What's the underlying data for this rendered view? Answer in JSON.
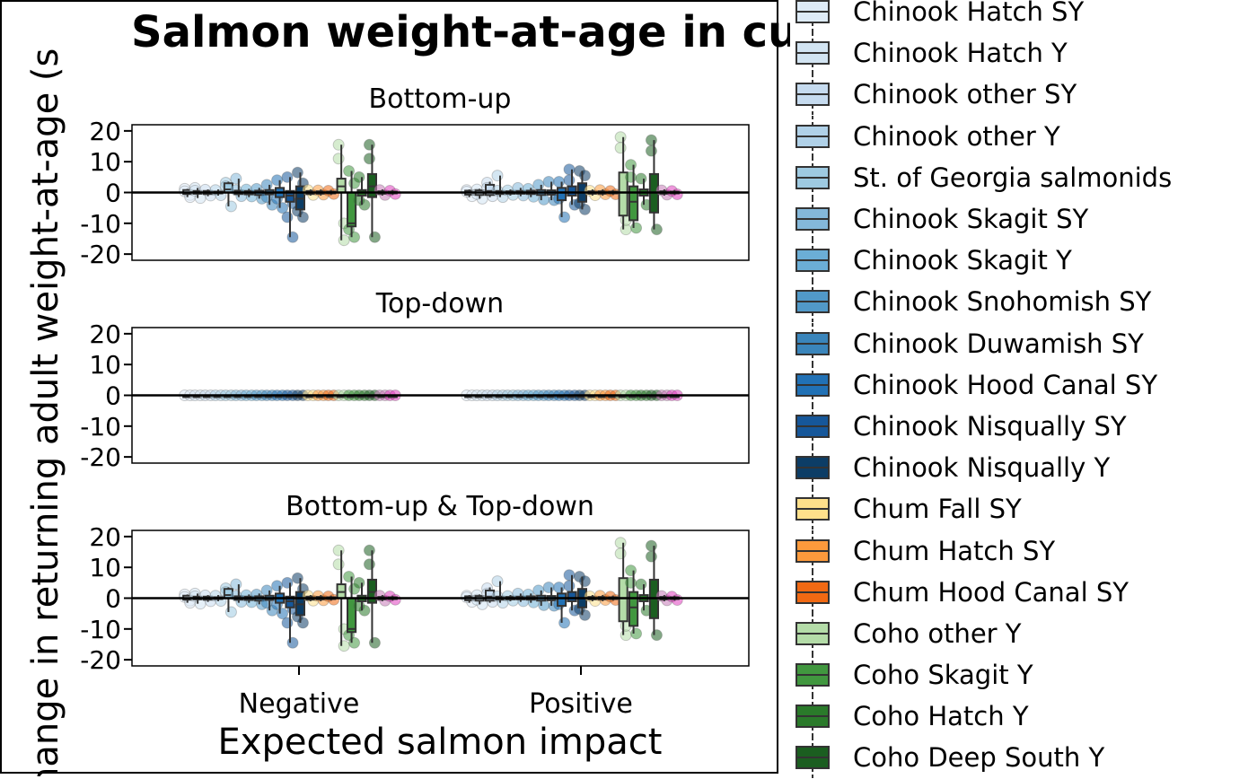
{
  "chart_data": {
    "type": "box",
    "title": "Salmon weight-at-age in cumulative scenar",
    "xlabel": "Expected salmon impact",
    "ylabel": "hange in returning adult weight-at-age (s",
    "categories": [
      "Negative",
      "Positive"
    ],
    "ylim": [
      -22,
      22
    ],
    "yticks": [
      20,
      10,
      0,
      -10,
      -20
    ],
    "ytick_labels": [
      "20",
      "10",
      "0",
      "-10",
      "-20"
    ],
    "reference_line": 0,
    "panels": [
      {
        "name": "Bottom-up",
        "groups": [
          {
            "series": "Chinook Hatch SY",
            "color": "#deebf7",
            "Negative": {
              "median": 0,
              "q1": -0.5,
              "q3": 0.8,
              "min": -1.5,
              "max": 1.2,
              "points": [
                1.2,
                -0.8,
                0.4,
                -1.5
              ]
            },
            "Positive": {
              "median": 0,
              "q1": -0.7,
              "q3": 0.6,
              "min": -1.5,
              "max": 1.0,
              "points": [
                0.8,
                -1.2,
                0.3
              ]
            }
          },
          {
            "series": "Chinook Hatch Y",
            "color": "#d2e4f2",
            "Negative": {
              "median": 0,
              "q1": -0.4,
              "q3": 0.5,
              "min": -1.8,
              "max": 1.5,
              "points": [
                1.5,
                -1.8,
                0.6
              ]
            },
            "Positive": {
              "median": 0,
              "q1": -0.8,
              "q3": 0.7,
              "min": -2.0,
              "max": 1.2,
              "points": [
                1.0,
                -2.0,
                -0.5
              ]
            }
          },
          {
            "series": "Chinook other SY",
            "color": "#c6dbef",
            "Negative": {
              "median": 0,
              "q1": -0.5,
              "q3": 0.5,
              "min": -1.2,
              "max": 1.0,
              "points": [
                0.9,
                -1.0
              ]
            },
            "Positive": {
              "median": 0.5,
              "q1": -0.8,
              "q3": 2.5,
              "min": -1.5,
              "max": 3.5,
              "points": [
                3.2,
                -1.2,
                1.5
              ]
            }
          },
          {
            "series": "Chinook other Y",
            "color": "#b0d1e8",
            "Negative": {
              "median": 0,
              "q1": -0.3,
              "q3": 0.3,
              "min": -1.0,
              "max": 1.0,
              "points": [
                0.8,
                -0.9
              ]
            },
            "Positive": {
              "median": 0,
              "q1": -0.5,
              "q3": 0.5,
              "min": -1.5,
              "max": 5.5,
              "points": [
                5.5,
                -1.5,
                0.6
              ]
            }
          },
          {
            "series": "St. of Georgia salmonids",
            "color": "#9ecae1",
            "Negative": {
              "median": 1,
              "q1": 0,
              "q3": 3,
              "min": -4.5,
              "max": 3.5,
              "points": [
                3.2,
                -4.5,
                2.0
              ]
            },
            "Positive": {
              "median": 0,
              "q1": -0.4,
              "q3": 0.4,
              "min": -1.0,
              "max": 1.0,
              "points": [
                0.7,
                -0.8
              ]
            }
          },
          {
            "series": "Chinook Skagit SY",
            "color": "#84b8da",
            "Negative": {
              "median": 0,
              "q1": -0.5,
              "q3": 0.6,
              "min": -1.5,
              "max": 4.5,
              "points": [
                4.5,
                -1.2,
                0.8
              ]
            },
            "Positive": {
              "median": 0,
              "q1": -0.4,
              "q3": 0.5,
              "min": -1.2,
              "max": 1.5,
              "points": [
                1.5,
                -1.0
              ]
            }
          },
          {
            "series": "Chinook Skagit Y",
            "color": "#6baed6",
            "Negative": {
              "median": 0,
              "q1": -0.6,
              "q3": 0.5,
              "min": -1.5,
              "max": 1.2,
              "points": [
                1.0,
                -1.3
              ]
            },
            "Positive": {
              "median": 0,
              "q1": -0.5,
              "q3": 0.6,
              "min": -1.5,
              "max": 1.5,
              "points": [
                1.2,
                -1.4
              ]
            }
          },
          {
            "series": "Chinook Snohomish SY",
            "color": "#5199c8",
            "Negative": {
              "median": 0,
              "q1": -0.8,
              "q3": 0.6,
              "min": -2.0,
              "max": 1.5,
              "points": [
                1.2,
                -2.0
              ]
            },
            "Positive": {
              "median": 0,
              "q1": -0.8,
              "q3": 0.8,
              "min": -2.5,
              "max": 2.5,
              "points": [
                2.5,
                -2.3
              ]
            }
          },
          {
            "series": "Chinook Duwamish SY",
            "color": "#3a85bb",
            "Negative": {
              "median": 0,
              "q1": -0.6,
              "q3": 0.8,
              "min": -4.0,
              "max": 2.5,
              "points": [
                2.5,
                -4.0,
                -1.5
              ]
            },
            "Positive": {
              "median": 0,
              "q1": -0.7,
              "q3": 0.7,
              "min": -2.5,
              "max": 3.5,
              "points": [
                3.5,
                -2.5
              ]
            }
          },
          {
            "series": "Chinook Hood Canal SY",
            "color": "#2171b5",
            "Negative": {
              "median": 0,
              "q1": -1.5,
              "q3": 1.5,
              "min": -5.0,
              "max": 4.0,
              "points": [
                4.0,
                -5.0,
                -2.0
              ]
            },
            "Positive": {
              "median": 0,
              "q1": -2.5,
              "q3": 1.5,
              "min": -8.0,
              "max": 3.5,
              "points": [
                3.5,
                -8.0,
                -2.0
              ]
            }
          },
          {
            "series": "Chinook Nisqually SY",
            "color": "#16579a",
            "Negative": {
              "median": -1,
              "q1": -3,
              "q3": 0.5,
              "min": -14.5,
              "max": 5.0,
              "points": [
                5.0,
                -14.5,
                -8.0,
                -3.5
              ]
            },
            "Positive": {
              "median": 0,
              "q1": -1.0,
              "q3": 2.0,
              "min": -4.0,
              "max": 7.5,
              "points": [
                7.5,
                -4.0,
                4.0
              ]
            }
          },
          {
            "series": "Chinook Nisqually Y",
            "color": "#0c3d66",
            "Negative": {
              "median": -2,
              "q1": -5.5,
              "q3": 2,
              "min": -8.0,
              "max": 6.5,
              "points": [
                6.5,
                -8.0,
                -6.0,
                3.0
              ]
            },
            "Positive": {
              "median": 0,
              "q1": -3.0,
              "q3": 3.0,
              "min": -5.5,
              "max": 7.0,
              "points": [
                7.0,
                -5.5,
                -3.5,
                5.5
              ]
            }
          },
          {
            "series": "Chum Fall SY",
            "color": "#fee08b",
            "Negative": {
              "median": 0,
              "q1": -0.5,
              "q3": 0.5,
              "min": -1.0,
              "max": 1.0,
              "points": [
                0.8,
                -0.8
              ]
            },
            "Positive": {
              "median": 0,
              "q1": -0.4,
              "q3": 0.4,
              "min": -1.0,
              "max": 1.0,
              "points": [
                0.6,
                -0.9
              ]
            }
          },
          {
            "series": "Chum Hatch SY",
            "color": "#fd9a3c",
            "Negative": {
              "median": 0,
              "q1": -0.4,
              "q3": 0.4,
              "min": -1.0,
              "max": 1.0,
              "points": [
                0.7,
                -0.7
              ]
            },
            "Positive": {
              "median": 0,
              "q1": -0.4,
              "q3": 0.4,
              "min": -1.0,
              "max": 1.0,
              "points": [
                0.8,
                -0.6
              ]
            }
          },
          {
            "series": "Chum Hood Canal SY",
            "color": "#f16913",
            "Negative": {
              "median": 0,
              "q1": -0.3,
              "q3": 0.3,
              "min": -0.8,
              "max": 0.8,
              "points": [
                0.6,
                -0.5
              ]
            },
            "Positive": {
              "median": 0,
              "q1": -0.3,
              "q3": 0.3,
              "min": -0.8,
              "max": 0.8,
              "points": [
                0.5,
                -0.6
              ]
            }
          },
          {
            "series": "Coho other Y",
            "color": "#b4dca8",
            "Negative": {
              "median": 2,
              "q1": 0,
              "q3": 4.5,
              "min": -15.5,
              "max": 15.5,
              "points": [
                15.5,
                -15.5,
                11.0,
                -10.0
              ]
            },
            "Positive": {
              "median": 0,
              "q1": -7.5,
              "q3": 6.5,
              "min": -12.0,
              "max": 18.0,
              "points": [
                18.0,
                -12.0,
                14.5,
                -9.0
              ]
            }
          },
          {
            "series": "Coho Skagit Y",
            "color": "#41973f",
            "Negative": {
              "median": -10,
              "q1": -11,
              "q3": 0,
              "min": -14.5,
              "max": 7.0,
              "points": [
                7.0,
                -14.5,
                -12.0,
                3.0
              ]
            },
            "Positive": {
              "median": -3,
              "q1": -9,
              "q3": 2,
              "min": -11.5,
              "max": 9.0,
              "points": [
                9.0,
                -11.5,
                5.0
              ]
            }
          },
          {
            "series": "Coho Hatch Y",
            "color": "#2a7a2a",
            "Negative": {
              "median": 0,
              "q1": -1.0,
              "q3": 0.8,
              "min": -4.0,
              "max": 5.0,
              "points": [
                5.0,
                -4.0,
                -2.5
              ]
            },
            "Positive": {
              "median": 0,
              "q1": -1.0,
              "q3": 1.0,
              "min": -4.0,
              "max": 4.5,
              "points": [
                4.5,
                -4.0
              ]
            }
          },
          {
            "series": "Coho Deep South Y",
            "color": "#1b5e20",
            "Negative": {
              "median": 2,
              "q1": -1.5,
              "q3": 6,
              "min": -14.5,
              "max": 15.5,
              "points": [
                15.5,
                -14.5,
                11.0
              ]
            },
            "Positive": {
              "median": 0,
              "q1": -6.5,
              "q3": 6,
              "min": -12.0,
              "max": 17.0,
              "points": [
                17.0,
                -12.0,
                13.5
              ]
            }
          },
          {
            "series": "",
            "color": "#c77ab8",
            "Negative": {
              "median": 0,
              "q1": -0.4,
              "q3": 0.4,
              "min": -1.0,
              "max": 1.0,
              "points": [
                0.8,
                -0.8
              ]
            },
            "Positive": {
              "median": 0,
              "q1": -0.4,
              "q3": 0.4,
              "min": -1.0,
              "max": 1.0,
              "points": [
                0.7,
                -0.7
              ]
            }
          },
          {
            "series": "",
            "color": "#e040c0",
            "Negative": {
              "median": 0,
              "q1": -0.3,
              "q3": 0.3,
              "min": -0.8,
              "max": 0.8,
              "points": [
                0.6,
                -0.5
              ]
            },
            "Positive": {
              "median": 0,
              "q1": -0.3,
              "q3": 0.3,
              "min": -0.8,
              "max": 0.8,
              "points": [
                0.5,
                -0.6
              ]
            }
          }
        ]
      },
      {
        "name": "Top-down",
        "groups": "all-zero"
      },
      {
        "name": "Bottom-up & Top-down",
        "groups": "similar-to-bottom-up"
      }
    ],
    "legend": {
      "placement": "right",
      "entries": [
        {
          "label": "Chinook Hatch SY",
          "color": "#deebf7"
        },
        {
          "label": "Chinook Hatch Y",
          "color": "#d2e4f2"
        },
        {
          "label": "Chinook other SY",
          "color": "#c6dbef"
        },
        {
          "label": "Chinook other Y",
          "color": "#b0d1e8"
        },
        {
          "label": "St. of Georgia salmonids",
          "color": "#9ecae1"
        },
        {
          "label": "Chinook Skagit SY",
          "color": "#84b8da"
        },
        {
          "label": "Chinook Skagit Y",
          "color": "#6baed6"
        },
        {
          "label": "Chinook Snohomish SY",
          "color": "#5199c8"
        },
        {
          "label": "Chinook Duwamish SY",
          "color": "#3a85bb"
        },
        {
          "label": "Chinook Hood Canal SY",
          "color": "#2171b5"
        },
        {
          "label": "Chinook Nisqually SY",
          "color": "#16579a"
        },
        {
          "label": "Chinook Nisqually Y",
          "color": "#0c3d66"
        },
        {
          "label": "Chum Fall SY",
          "color": "#fee08b"
        },
        {
          "label": "Chum Hatch SY",
          "color": "#fd9a3c"
        },
        {
          "label": "Chum Hood Canal SY",
          "color": "#f16913"
        },
        {
          "label": "Coho other Y",
          "color": "#b4dca8"
        },
        {
          "label": "Coho Skagit Y",
          "color": "#41973f"
        },
        {
          "label": "Coho Hatch Y",
          "color": "#2a7a2a"
        },
        {
          "label": "Coho Deep South Y",
          "color": "#1b5e20"
        }
      ]
    },
    "grid": false
  }
}
